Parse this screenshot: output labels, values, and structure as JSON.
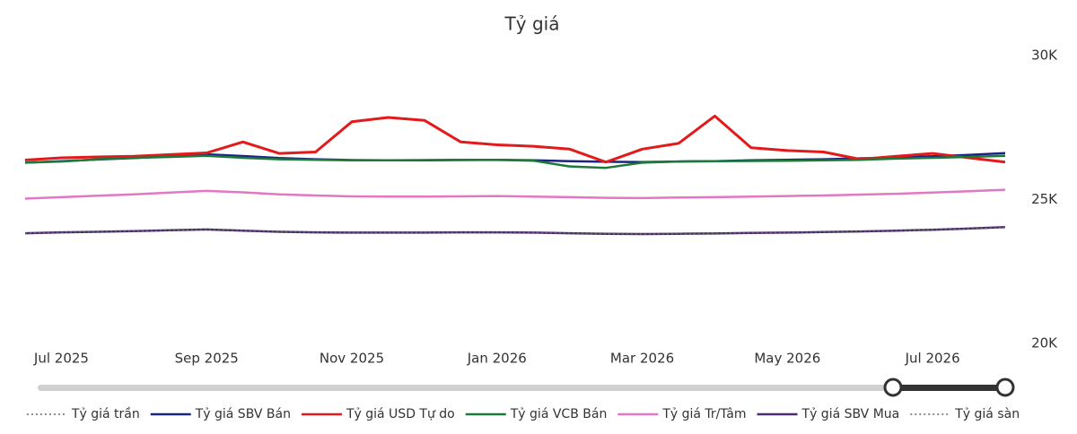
{
  "chart_data": {
    "type": "line",
    "title": "Tỷ giá",
    "categories": [
      null,
      "Jul 2025",
      null,
      null,
      null,
      "Sep 2025",
      null,
      null,
      null,
      "Nov 2025",
      null,
      null,
      null,
      "Jan 2026",
      null,
      null,
      null,
      "Mar 2026",
      null,
      null,
      null,
      "May 2026",
      null,
      null,
      null,
      "Jul 2026",
      null,
      null
    ],
    "ylim": [
      20000,
      30000
    ],
    "yticks": [
      {
        "value": 20000,
        "label": "20K"
      },
      {
        "value": 25000,
        "label": "25K"
      },
      {
        "value": 30000,
        "label": "30K"
      }
    ],
    "series": [
      {
        "name": "Tỷ giá trần",
        "color": "#666666",
        "dash": "dotted",
        "values": [
          26280,
          26330,
          26390,
          26440,
          26500,
          26570,
          26510,
          26440,
          26400,
          26370,
          26360,
          26360,
          26370,
          26380,
          26360,
          26330,
          26310,
          26300,
          26320,
          26330,
          26360,
          26380,
          26400,
          26430,
          26460,
          26500,
          26550,
          26610
        ]
      },
      {
        "name": "Tỷ giá SBV Bán",
        "color": "#1a237e",
        "values": [
          26280,
          26330,
          26390,
          26440,
          26500,
          26570,
          26510,
          26440,
          26400,
          26370,
          26360,
          26360,
          26370,
          26380,
          26360,
          26330,
          26310,
          26300,
          26320,
          26330,
          26360,
          26380,
          26400,
          26430,
          26460,
          26500,
          26550,
          26610
        ]
      },
      {
        "name": "Tỷ giá USD Tự do",
        "color": "#e31a1c",
        "values": [
          26370,
          26450,
          26480,
          26500,
          26560,
          26620,
          27000,
          26600,
          26650,
          27700,
          27850,
          27750,
          27000,
          26900,
          26850,
          26750,
          26300,
          26750,
          26950,
          27900,
          26800,
          26700,
          26650,
          26400,
          26500,
          26600,
          26450,
          26300
        ]
      },
      {
        "name": "Tỷ giá VCB Bán",
        "color": "#1b7a3a",
        "values": [
          26280,
          26320,
          26400,
          26450,
          26480,
          26520,
          26450,
          26400,
          26380,
          26360,
          26360,
          26370,
          26380,
          26380,
          26350,
          26150,
          26100,
          26280,
          26320,
          26330,
          26340,
          26350,
          26360,
          26380,
          26420,
          26450,
          26480,
          26520
        ]
      },
      {
        "name": "Tỷ giá Tr/Tâm",
        "color": "#e377c2",
        "values": [
          25030,
          25080,
          25130,
          25180,
          25240,
          25300,
          25250,
          25180,
          25140,
          25110,
          25100,
          25100,
          25110,
          25120,
          25100,
          25080,
          25060,
          25050,
          25070,
          25080,
          25100,
          25120,
          25140,
          25170,
          25200,
          25240,
          25290,
          25340
        ]
      },
      {
        "name": "Tỷ giá SBV Mua",
        "color": "#4b2c6e",
        "values": [
          23830,
          23860,
          23880,
          23900,
          23930,
          23960,
          23920,
          23880,
          23860,
          23850,
          23850,
          23850,
          23860,
          23860,
          23850,
          23830,
          23810,
          23800,
          23810,
          23820,
          23840,
          23850,
          23870,
          23890,
          23920,
          23950,
          23990,
          24040
        ]
      },
      {
        "name": "Tỷ giá sàn",
        "color": "#666666",
        "dash": "dotted",
        "values": [
          23830,
          23860,
          23880,
          23900,
          23930,
          23960,
          23920,
          23880,
          23860,
          23850,
          23850,
          23850,
          23860,
          23860,
          23850,
          23830,
          23810,
          23800,
          23810,
          23820,
          23840,
          23850,
          23870,
          23890,
          23920,
          23950,
          23990,
          24040
        ]
      }
    ]
  }
}
